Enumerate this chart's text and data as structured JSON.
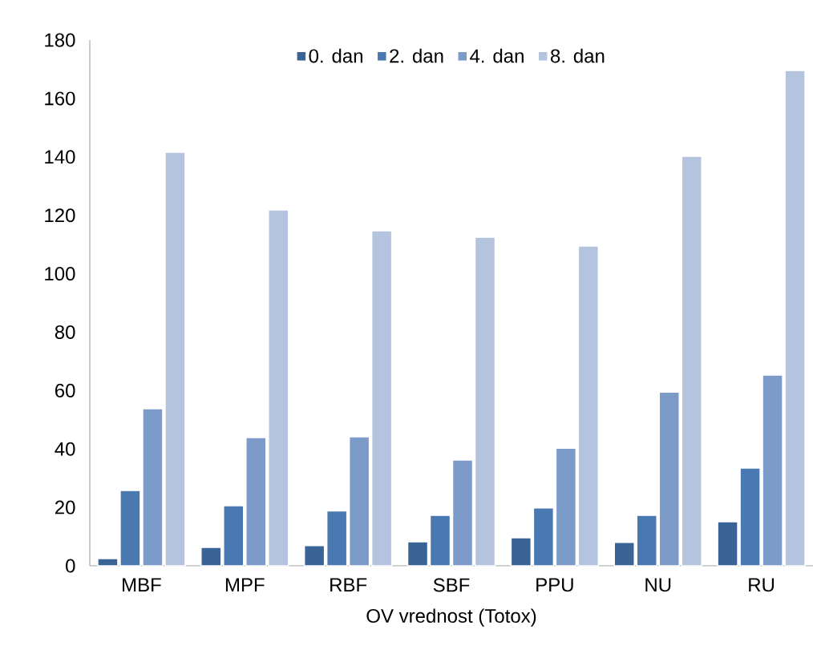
{
  "chart_data": {
    "type": "bar",
    "xlabel": "OV vrednost (Totox)",
    "categories": [
      "MBF",
      "MPF",
      "RBF",
      "SBF",
      "PPU",
      "NU",
      "RU"
    ],
    "series": [
      {
        "name": "0. dan",
        "color": "#3b6496",
        "values": [
          2.5,
          6.3,
          6.9,
          8.2,
          9.6,
          8.0,
          15.1
        ]
      },
      {
        "name": "2. dan",
        "color": "#4a78b0",
        "values": [
          25.8,
          20.6,
          18.8,
          17.3,
          19.8,
          17.3,
          33.5
        ]
      },
      {
        "name": "4. dan",
        "color": "#7d9bc8",
        "values": [
          53.8,
          43.9,
          44.2,
          36.2,
          40.3,
          59.5,
          65.3
        ]
      },
      {
        "name": "8. dan",
        "color": "#b4c3de",
        "values": [
          141.6,
          121.8,
          114.7,
          112.5,
          109.5,
          140.2,
          169.6
        ]
      }
    ],
    "ylim": [
      0,
      180
    ],
    "yticks": [
      0,
      20,
      40,
      60,
      80,
      100,
      120,
      140,
      160,
      180
    ],
    "grid": false,
    "legend": "top"
  }
}
